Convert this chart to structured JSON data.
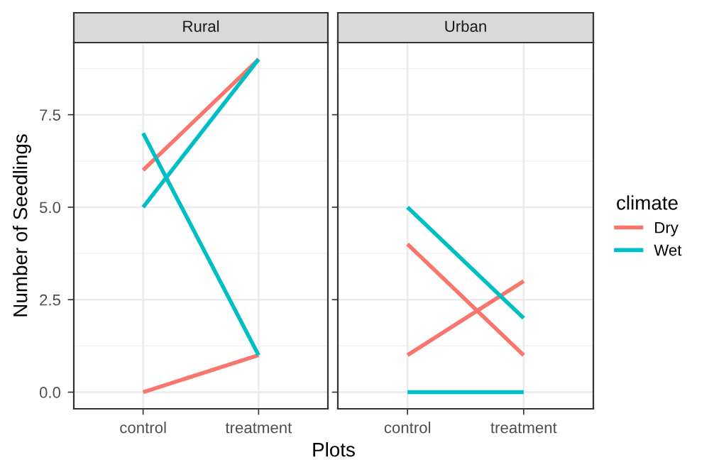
{
  "chart_data": [
    {
      "type": "line",
      "title": "Rural",
      "xlabel": "Plots",
      "ylabel": "Number of Seedlings",
      "categories": [
        "control",
        "treatment"
      ],
      "ylim": [
        -0.45,
        9.45
      ],
      "yticks": [
        {
          "value": 0,
          "label": "0.0"
        },
        {
          "value": 2.5,
          "label": "2.5"
        },
        {
          "value": 5,
          "label": "5.0"
        },
        {
          "value": 7.5,
          "label": "7.5"
        }
      ],
      "grid": true,
      "legend": "right",
      "legend_title": "climate",
      "series": [
        {
          "name": "Dry",
          "color": "#f8766d",
          "values": [
            6,
            9
          ]
        },
        {
          "color": "#f8766d",
          "values": [
            0,
            1
          ]
        },
        {
          "name": "Wet",
          "color": "#00bfc4",
          "values": [
            5,
            9
          ]
        },
        {
          "color": "#00bfc4",
          "values": [
            7,
            1
          ]
        }
      ]
    },
    {
      "type": "line",
      "title": "Urban",
      "categories": [
        "control",
        "treatment"
      ],
      "ylim": [
        -0.45,
        9.45
      ],
      "yticks": [
        {
          "value": 0,
          "label": null
        },
        {
          "value": 2.5,
          "label": null
        },
        {
          "value": 5,
          "label": null
        },
        {
          "value": 7.5,
          "label": null
        }
      ],
      "tick_labels": "x",
      "grid": true,
      "series": [
        {
          "color": "#f8766d",
          "values": [
            4,
            1
          ]
        },
        {
          "color": "#f8766d",
          "values": [
            1,
            3
          ]
        },
        {
          "color": "#00bfc4",
          "values": [
            5,
            2
          ]
        },
        {
          "color": "#00bfc4",
          "values": [
            0,
            0
          ]
        }
      ]
    }
  ]
}
